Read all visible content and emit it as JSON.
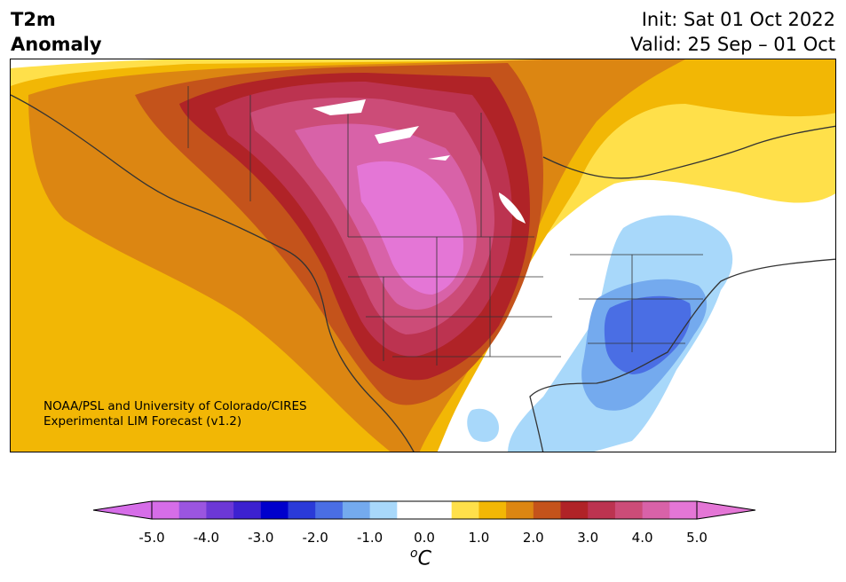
{
  "header": {
    "variable_line1": "T2m",
    "variable_line2": "Anomaly",
    "init": "Init: Sat 01 Oct 2022",
    "valid": "Valid: 25 Sep – 01 Oct"
  },
  "credit": {
    "line1": "NOAA/PSL and University of Colorado/CIRES",
    "line2": "Experimental LIM Forecast (v1.2)"
  },
  "colorbar": {
    "ticks": [
      "-5.0",
      "-4.0",
      "-3.0",
      "-2.0",
      "-1.0",
      "0.0",
      "1.0",
      "2.0",
      "3.0",
      "4.0",
      "5.0"
    ],
    "unit_prefix": "o",
    "unit_letter": "C",
    "levels": [
      {
        "value": -5.0,
        "color": "#d66de8"
      },
      {
        "value": -4.5,
        "color": "#9b55e0"
      },
      {
        "value": -4.0,
        "color": "#6c38d6"
      },
      {
        "value": -3.5,
        "color": "#3c21d0"
      },
      {
        "value": -3.0,
        "color": "#0000cc"
      },
      {
        "value": -2.5,
        "color": "#2a3ad8"
      },
      {
        "value": -2.0,
        "color": "#4a6ee4"
      },
      {
        "value": -1.5,
        "color": "#74aaee"
      },
      {
        "value": -1.0,
        "color": "#a8d8fa"
      },
      {
        "value": -0.5,
        "color": "#ffffff"
      },
      {
        "value": 0.0,
        "color": "#ffffff"
      },
      {
        "value": 0.5,
        "color": "#ffe04a"
      },
      {
        "value": 1.0,
        "color": "#f2b705"
      },
      {
        "value": 1.5,
        "color": "#dc8612"
      },
      {
        "value": 2.0,
        "color": "#c4531b"
      },
      {
        "value": 2.5,
        "color": "#b02327"
      },
      {
        "value": 3.0,
        "color": "#bc3350"
      },
      {
        "value": 3.5,
        "color": "#cc4c78"
      },
      {
        "value": 4.0,
        "color": "#d862a8"
      },
      {
        "value": 4.5,
        "color": "#e476d6"
      }
    ],
    "under_color": "#d66de8",
    "over_color": "#e476d6"
  }
}
